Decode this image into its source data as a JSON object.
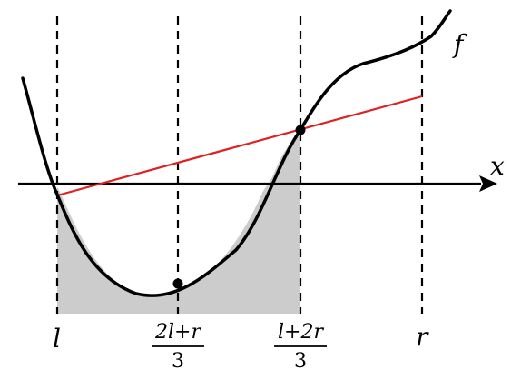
{
  "figure": {
    "function_label": "f",
    "axis_label": "x",
    "tick_labels": {
      "l": "l",
      "third1_numerator": "2l+r",
      "third1_denominator": "3",
      "third2_numerator": "l+2r",
      "third2_denominator": "3",
      "r": "r"
    },
    "colors": {
      "curve": "#000000",
      "secant": "#e02020",
      "shade": "#cccccc",
      "axis": "#000000",
      "guides": "#000000"
    },
    "elements": {
      "shaded_region": "area between curve and x axis from l to (l+2r)/3",
      "points": [
        "minimum point near (2l+r)/3",
        "intersection at (l+2r)/3"
      ]
    }
  }
}
